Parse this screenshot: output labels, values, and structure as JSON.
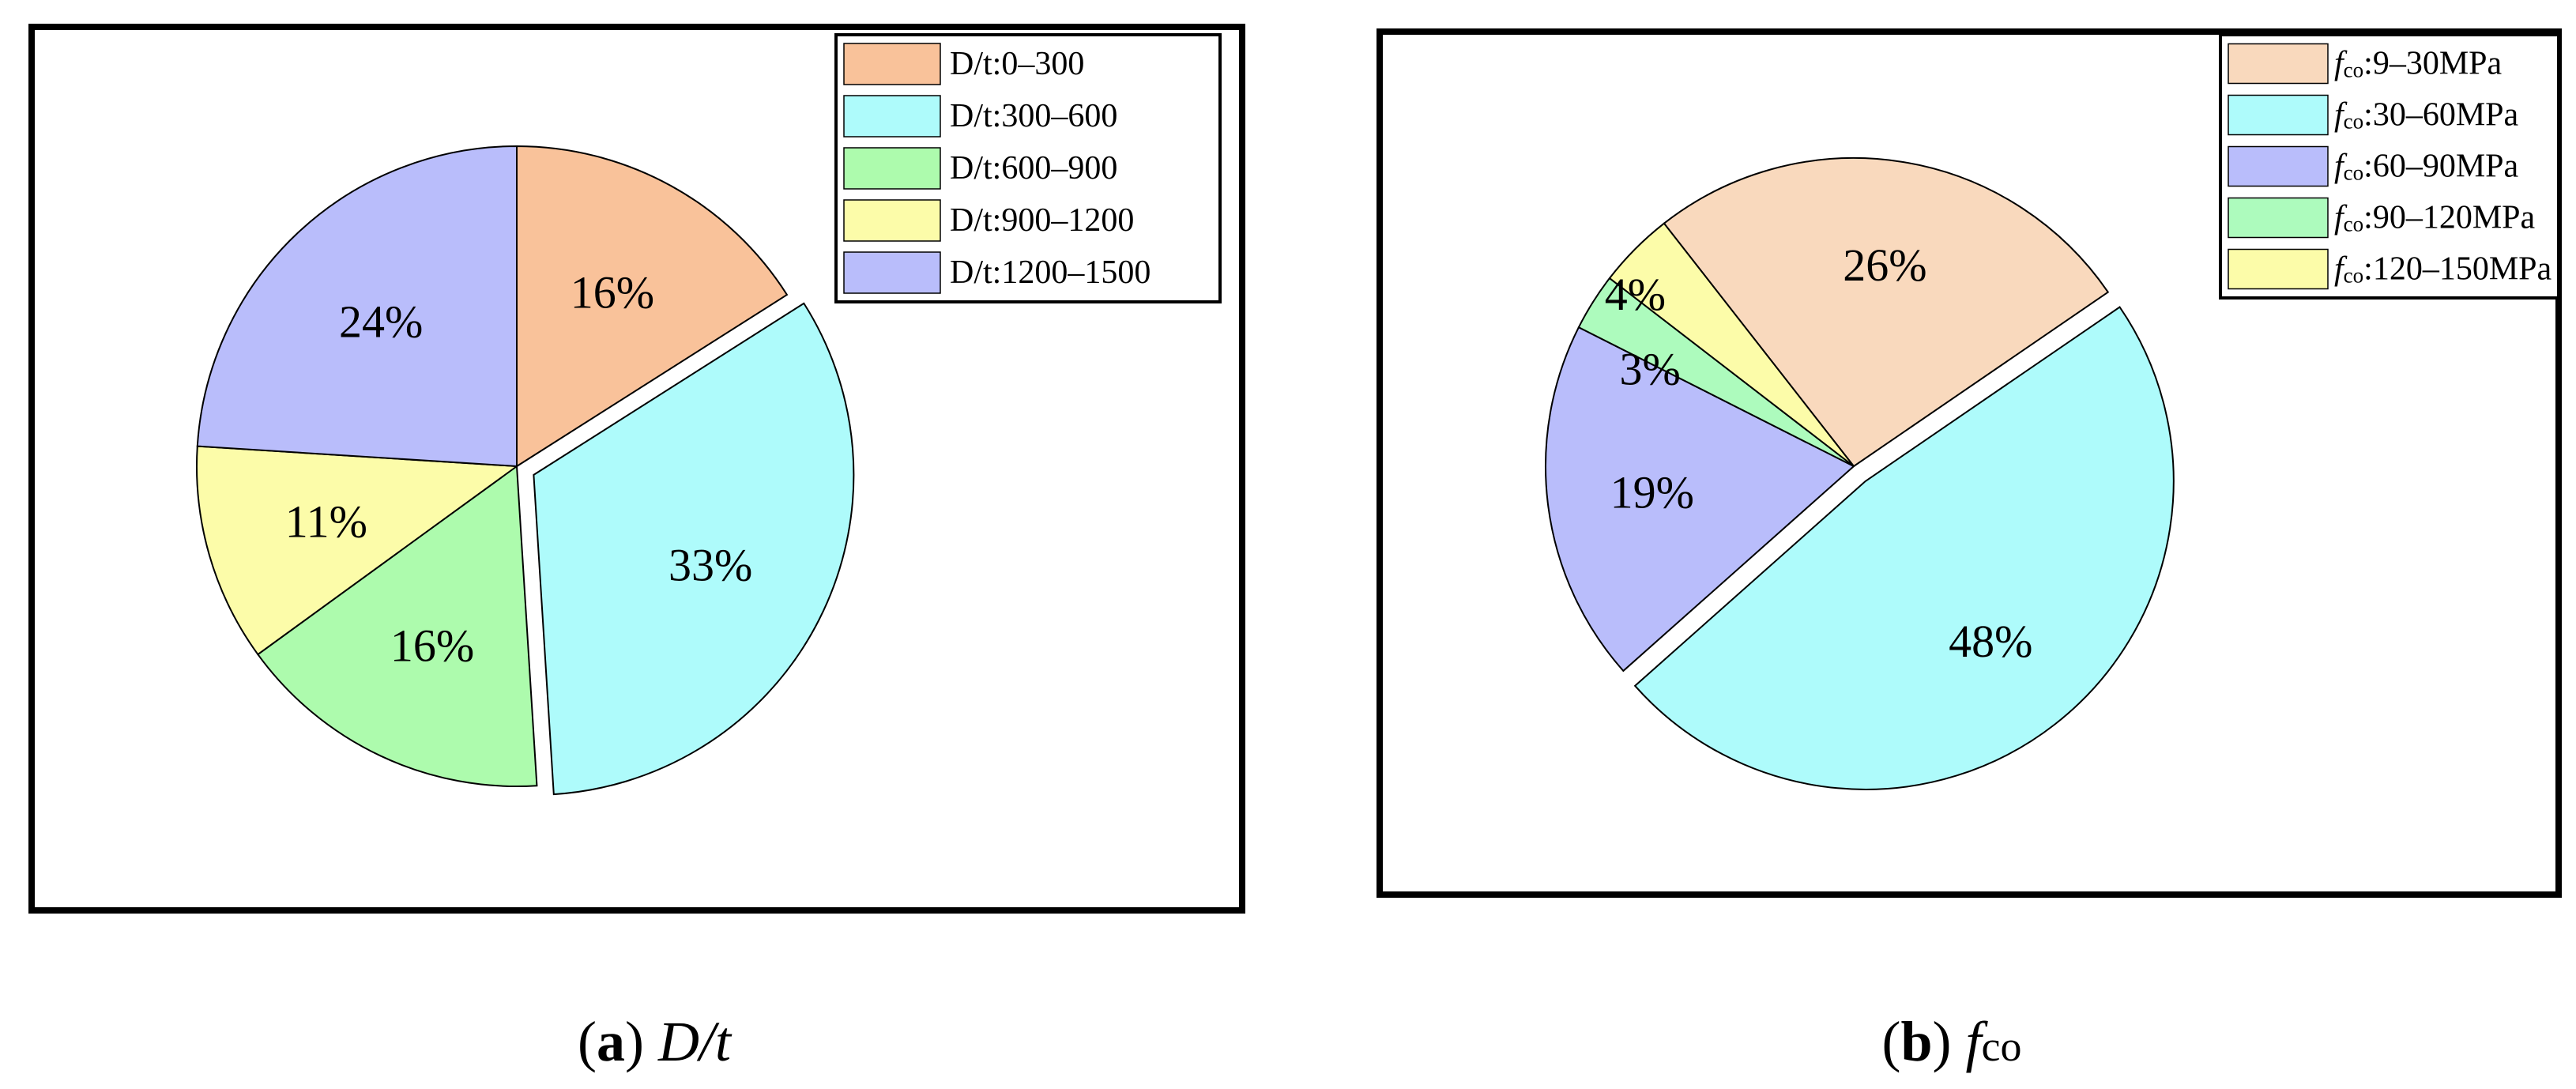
{
  "chart_data": [
    {
      "type": "pie",
      "categories": [
        "D/t:0–300",
        "D/t:300–600",
        "D/t:600–900",
        "D/t:900–1200",
        "D/t:1200–1500"
      ],
      "values": [
        16,
        33,
        16,
        11,
        24
      ],
      "labels": [
        "16%",
        "33%",
        "16%",
        "11%",
        "24%"
      ],
      "colors": [
        "#f9c29a",
        "#aefbfb",
        "#adfbad",
        "#fcfca9",
        "#b9bdfb"
      ],
      "exploded": [
        false,
        true,
        false,
        false,
        false
      ],
      "legend_position": "top-right",
      "caption": {
        "letter": "a",
        "text": "D/t"
      }
    },
    {
      "type": "pie",
      "categories": [
        {
          "prefix": "f",
          "sub": "co",
          "range": ":9–30MPa"
        },
        {
          "prefix": "f",
          "sub": "co",
          "range": ":30–60MPa"
        },
        {
          "prefix": "f",
          "sub": "co",
          "range": ":60–90MPa"
        },
        {
          "prefix": "f",
          "sub": "co",
          "range": ":90–120MPa"
        },
        {
          "prefix": "f",
          "sub": "co",
          "range": ":120–150MPa"
        }
      ],
      "values": [
        26,
        48,
        19,
        3,
        4
      ],
      "labels": [
        "26%",
        "48%",
        "19%",
        "3%",
        "4%"
      ],
      "colors": [
        "#f9d9bd",
        "#aefbfb",
        "#b9bdfb",
        "#adfbbd",
        "#fcfca9"
      ],
      "exploded": [
        false,
        true,
        false,
        false,
        false
      ],
      "legend_position": "top-right",
      "caption": {
        "letter": "b",
        "text": "f",
        "sub": "co"
      }
    }
  ]
}
